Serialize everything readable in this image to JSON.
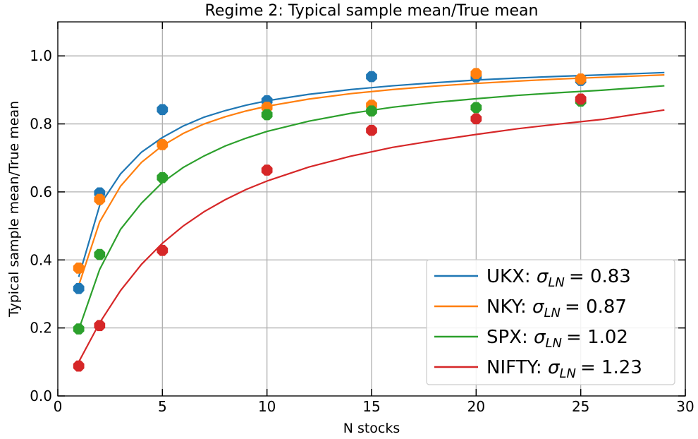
{
  "chart_data": {
    "type": "scatter",
    "title": "Regime 2: Typical sample mean/True mean",
    "xlabel": "N stocks",
    "ylabel": "Typical sample mean/True mean",
    "xlim": [
      0,
      30
    ],
    "ylim": [
      0,
      1.1
    ],
    "xticks": [
      "0",
      "5",
      "10",
      "15",
      "20",
      "25",
      "30"
    ],
    "yticks": [
      "0.0",
      "0.2",
      "0.4",
      "0.6",
      "0.8",
      "1.0"
    ],
    "grid": true,
    "legend_position": "lower-right",
    "series": [
      {
        "name": "UKX: σLN = 0.83",
        "name_prefix": "UKX: ",
        "sigma_value": "= 0.83",
        "color": "#1f77b4",
        "points_x": [
          1,
          2,
          5,
          10,
          15,
          20,
          25
        ],
        "points_y": [
          0.316,
          0.597,
          0.842,
          0.868,
          0.939,
          0.938,
          0.928
        ],
        "fit_x": [
          1,
          2,
          3,
          4,
          5,
          6,
          7,
          8,
          9,
          10,
          12,
          14,
          16,
          18,
          20,
          22,
          24,
          26,
          29
        ],
        "fit_y": [
          0.35,
          0.56,
          0.653,
          0.717,
          0.76,
          0.794,
          0.82,
          0.839,
          0.855,
          0.868,
          0.887,
          0.901,
          0.912,
          0.921,
          0.929,
          0.935,
          0.94,
          0.944,
          0.951
        ]
      },
      {
        "name": "NKY: σLN = 0.87",
        "name_prefix": "NKY: ",
        "sigma_value": "= 0.87",
        "color": "#ff7f0e",
        "points_x": [
          1,
          2,
          5,
          10,
          15,
          20,
          25
        ],
        "points_y": [
          0.376,
          0.578,
          0.739,
          0.849,
          0.855,
          0.948,
          0.932
        ],
        "fit_x": [
          1,
          2,
          3,
          4,
          5,
          6,
          7,
          8,
          9,
          10,
          12,
          14,
          16,
          18,
          20,
          22,
          24,
          26,
          29
        ],
        "fit_y": [
          0.325,
          0.512,
          0.617,
          0.687,
          0.736,
          0.772,
          0.8,
          0.821,
          0.838,
          0.852,
          0.873,
          0.889,
          0.901,
          0.911,
          0.919,
          0.926,
          0.932,
          0.937,
          0.944
        ]
      },
      {
        "name": "SPX: σLN = 1.02",
        "name_prefix": "SPX: ",
        "sigma_value": "= 1.02",
        "color": "#2ca02c",
        "points_x": [
          1,
          2,
          5,
          10,
          15,
          20,
          25
        ],
        "points_y": [
          0.197,
          0.416,
          0.642,
          0.827,
          0.838,
          0.848,
          0.867
        ],
        "fit_x": [
          1,
          2,
          3,
          4,
          5,
          6,
          7,
          8,
          9,
          10,
          12,
          14,
          16,
          18,
          20,
          22,
          24,
          26,
          29
        ],
        "fit_y": [
          0.195,
          0.372,
          0.49,
          0.567,
          0.628,
          0.672,
          0.706,
          0.735,
          0.758,
          0.778,
          0.808,
          0.831,
          0.849,
          0.863,
          0.874,
          0.884,
          0.892,
          0.899,
          0.912
        ]
      },
      {
        "name": "NIFTY: σLN = 1.23",
        "name_prefix": "NIFTY: ",
        "sigma_value": "= 1.23",
        "color": "#d62728",
        "points_x": [
          1,
          2,
          5,
          10,
          15,
          20,
          25
        ],
        "points_y": [
          0.088,
          0.207,
          0.428,
          0.664,
          0.781,
          0.815,
          0.873
        ],
        "fit_x": [
          1,
          2,
          3,
          4,
          5,
          6,
          7,
          8,
          9,
          10,
          12,
          14,
          16,
          18,
          20,
          22,
          24,
          26,
          29
        ],
        "fit_y": [
          0.1,
          0.215,
          0.31,
          0.387,
          0.449,
          0.5,
          0.542,
          0.577,
          0.607,
          0.632,
          0.673,
          0.705,
          0.731,
          0.751,
          0.769,
          0.786,
          0.8,
          0.813,
          0.841
        ]
      }
    ]
  }
}
